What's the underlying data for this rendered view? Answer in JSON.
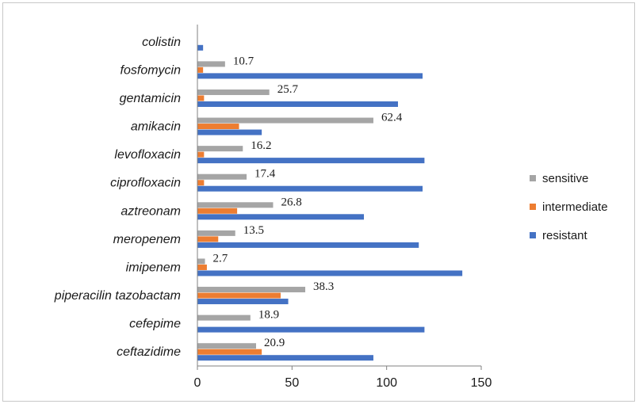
{
  "chart_data": {
    "type": "bar",
    "orientation": "horizontal",
    "categories": [
      "colistin",
      "fosfomycin",
      "gentamicin",
      "amikacin",
      "levofloxacin",
      "ciprofloxacin",
      "aztreonam",
      "meropenem",
      "imipenem",
      "piperacilin tazobactam",
      "cefepime",
      "ceftazidime"
    ],
    "series": [
      {
        "name": "sensitive",
        "color": "#a5a5a5",
        "values": [
          0,
          14.6,
          38,
          93,
          24,
          26,
          40,
          20,
          4,
          57,
          28,
          31
        ],
        "labels": [
          "",
          "10.7",
          "25.7",
          "62.4",
          "16.2",
          "17.4",
          "26.8",
          "13.5",
          "2.7",
          "38.3",
          "18.9",
          "20.9"
        ]
      },
      {
        "name": "intermediate",
        "color": "#ed7d31",
        "values": [
          0,
          3,
          3.5,
          22,
          3.5,
          3.5,
          21,
          11,
          5,
          44,
          0,
          34
        ]
      },
      {
        "name": "resistant",
        "color": "#4472c4",
        "values": [
          3,
          119,
          106,
          34,
          120,
          119,
          88,
          117,
          140,
          48,
          120,
          93
        ]
      }
    ],
    "xlim": [
      0,
      150
    ],
    "xticks": [
      "0",
      "50",
      "100",
      "150"
    ],
    "grid": false,
    "legend_position": "right"
  }
}
